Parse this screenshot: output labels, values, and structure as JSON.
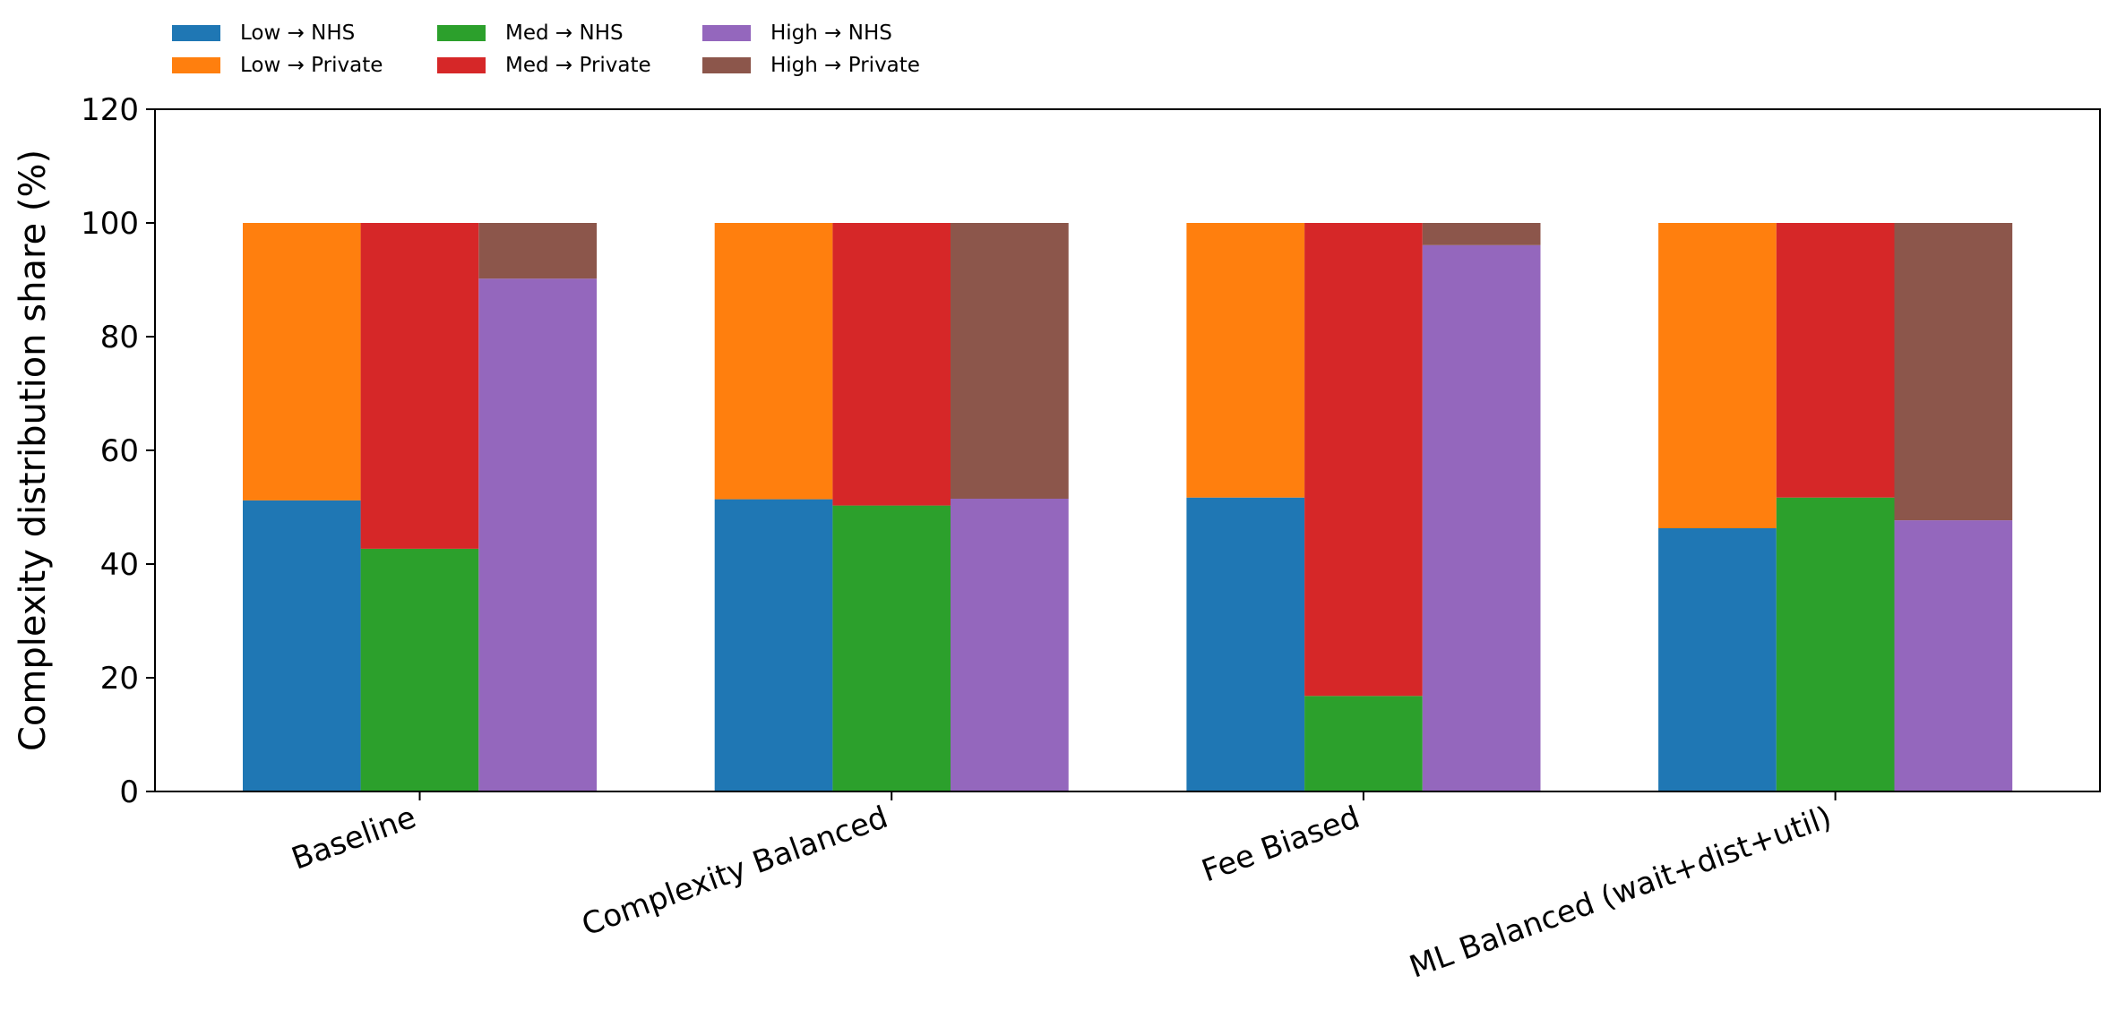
{
  "chart_data": {
    "type": "bar",
    "stacking": "grouped stacked (Low, Med, High stacks per scenario)",
    "categories": [
      "Baseline",
      "Complexity Balanced",
      "Fee Biased",
      "ML Balanced (wait+dist+util)"
    ],
    "ylabel": "Complexity distribution share (%)",
    "xlabel": "",
    "ylim": [
      0,
      120
    ],
    "yticks": [
      0,
      20,
      40,
      60,
      80,
      100,
      120
    ],
    "grid": false,
    "legend_position": "top-left, outside plot, 3 columns",
    "series": [
      {
        "name": "Low → NHS",
        "stack": "Low",
        "color": "#1f77b4",
        "values": [
          51.2,
          51.4,
          51.7,
          46.3
        ]
      },
      {
        "name": "Low → Private",
        "stack": "Low",
        "color": "#ff7f0e",
        "values": [
          48.8,
          48.6,
          48.3,
          53.7
        ]
      },
      {
        "name": "Med → NHS",
        "stack": "Med",
        "color": "#2ca02c",
        "values": [
          42.7,
          50.3,
          16.8,
          51.7
        ]
      },
      {
        "name": "Med → Private",
        "stack": "Med",
        "color": "#d62728",
        "values": [
          57.3,
          49.7,
          83.2,
          48.3
        ]
      },
      {
        "name": "High → NHS",
        "stack": "High",
        "color": "#9467bd",
        "values": [
          90.2,
          51.5,
          96.1,
          47.7
        ]
      },
      {
        "name": "High → Private",
        "stack": "High",
        "color": "#8c564b",
        "values": [
          9.8,
          48.5,
          3.9,
          52.3
        ]
      }
    ]
  }
}
